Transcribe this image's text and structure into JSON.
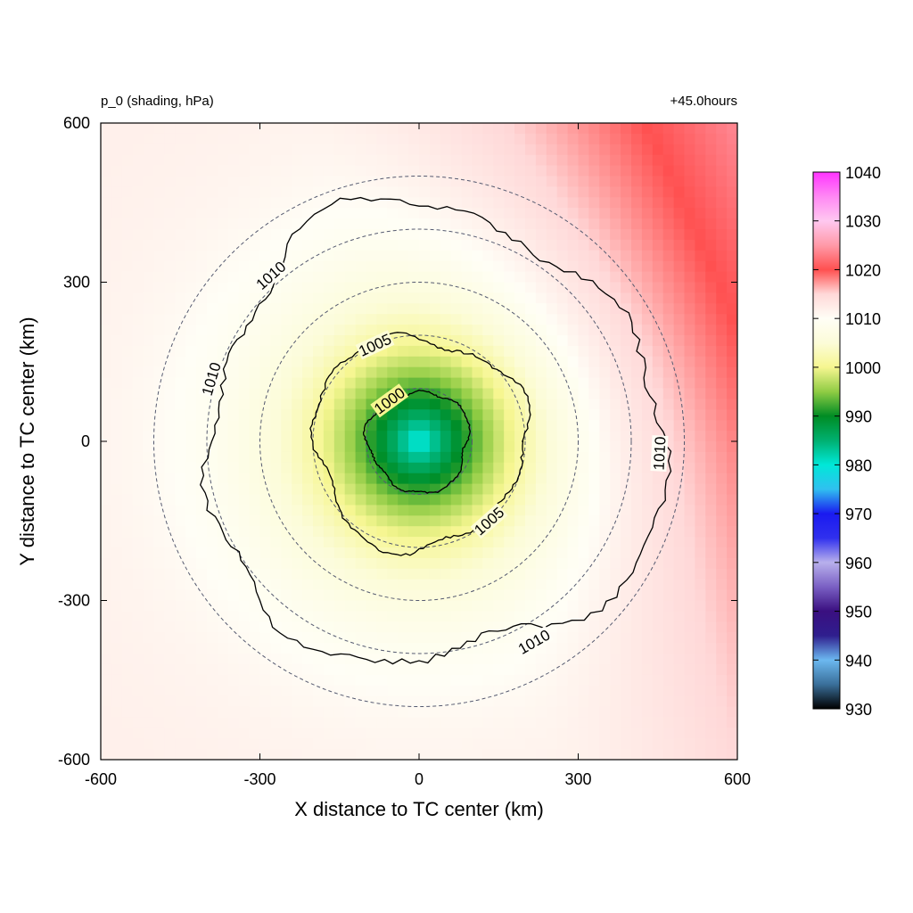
{
  "chart_data": {
    "type": "heatmap",
    "title_left": "p_0 (shading, hPa)",
    "title_right": "+45.0hours",
    "xlabel": "X distance to TC center (km)",
    "ylabel": "Y distance to TC center (km)",
    "xlim": [
      -600,
      600
    ],
    "ylim": [
      -600,
      600
    ],
    "xticks": [
      -600,
      -300,
      0,
      300,
      600
    ],
    "yticks": [
      -600,
      -300,
      0,
      300,
      600
    ],
    "field": {
      "center_pressure": 979,
      "ambient_pressure": 1012,
      "gradient_to": "upper-right",
      "upper_right_pressure": 1019
    },
    "contours": [
      {
        "level": 1000,
        "label": "1000",
        "radius_km": 95
      },
      {
        "level": 1005,
        "label": "1005",
        "radius_km": 200
      },
      {
        "level": 1010,
        "label": "1010",
        "radius_km": 430
      }
    ],
    "range_rings_km": [
      100,
      200,
      300,
      400,
      500
    ],
    "colorbar": {
      "ticks": [
        930,
        940,
        950,
        960,
        970,
        980,
        990,
        1000,
        1010,
        1020,
        1030,
        1040
      ],
      "stops": [
        {
          "value": 930,
          "color": "#000000"
        },
        {
          "value": 935,
          "color": "#3a6f9a"
        },
        {
          "value": 940,
          "color": "#6cb8f0"
        },
        {
          "value": 945,
          "color": "#2f1e8e"
        },
        {
          "value": 950,
          "color": "#3a0f80"
        },
        {
          "value": 955,
          "color": "#7a60c4"
        },
        {
          "value": 960,
          "color": "#b8b0ec"
        },
        {
          "value": 965,
          "color": "#3030ee"
        },
        {
          "value": 970,
          "color": "#1a1af0"
        },
        {
          "value": 975,
          "color": "#30c0f0"
        },
        {
          "value": 980,
          "color": "#00e8d8"
        },
        {
          "value": 985,
          "color": "#00b070"
        },
        {
          "value": 990,
          "color": "#008c24"
        },
        {
          "value": 995,
          "color": "#90cc44"
        },
        {
          "value": 1000,
          "color": "#f6f690"
        },
        {
          "value": 1005,
          "color": "#fcfcd8"
        },
        {
          "value": 1010,
          "color": "#fffef6"
        },
        {
          "value": 1015,
          "color": "#ffd8d8"
        },
        {
          "value": 1020,
          "color": "#ff5050"
        },
        {
          "value": 1025,
          "color": "#ff9aa8"
        },
        {
          "value": 1030,
          "color": "#ffc8f0"
        },
        {
          "value": 1035,
          "color": "#ff88f4"
        },
        {
          "value": 1040,
          "color": "#ff33ff"
        }
      ]
    }
  }
}
